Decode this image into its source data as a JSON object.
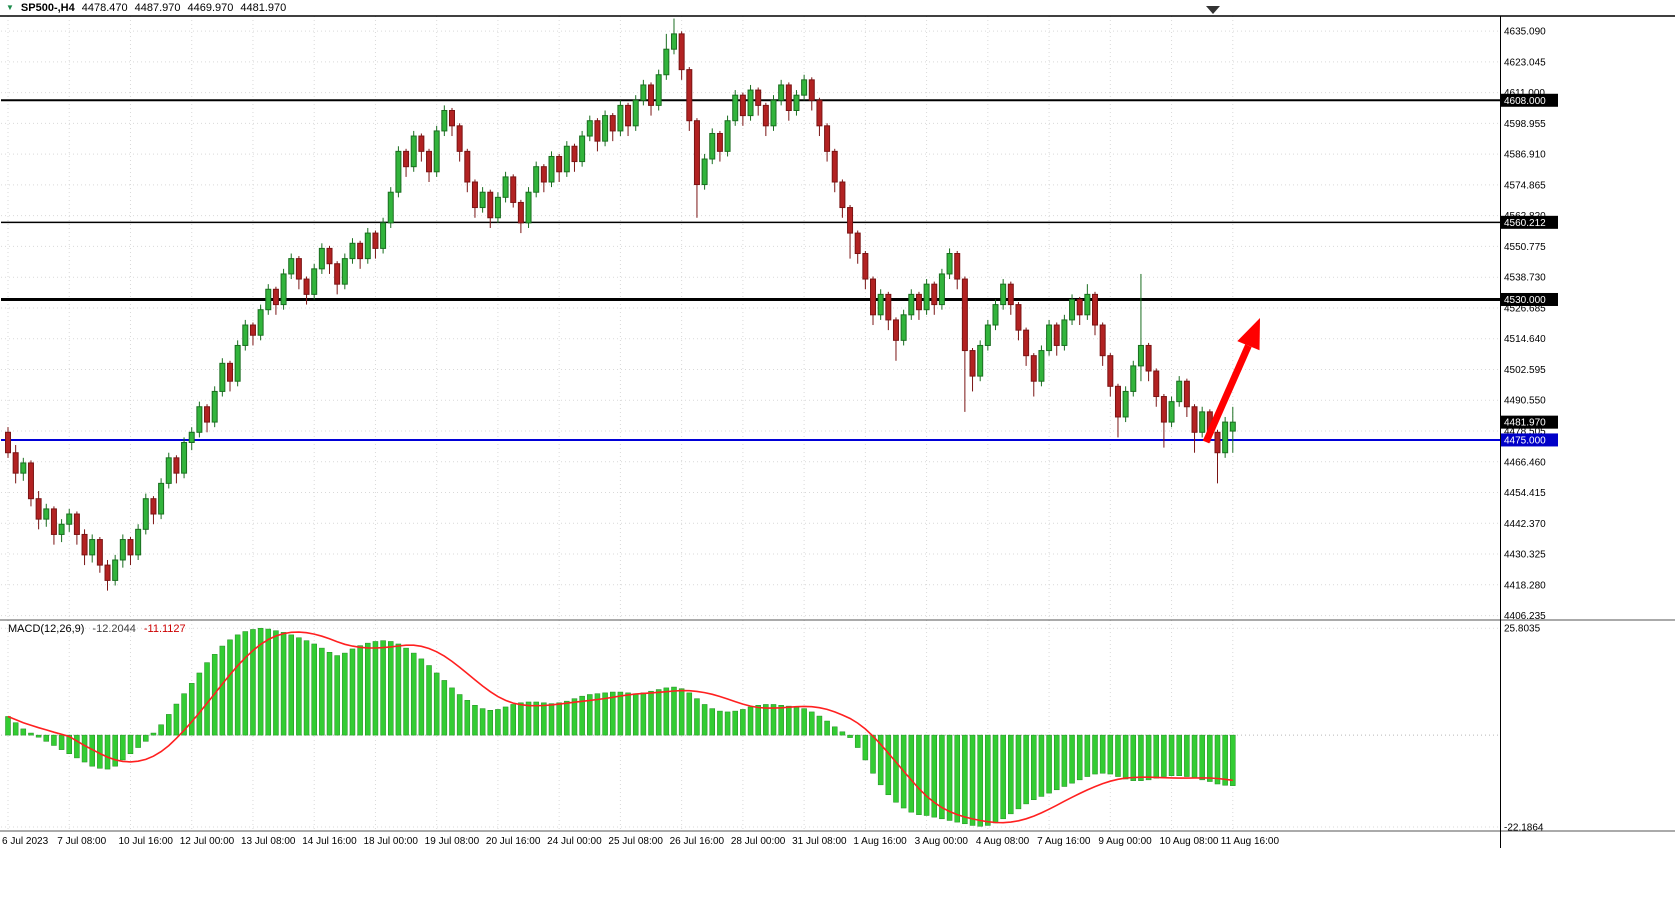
{
  "symbol_bar": {
    "symbol": "SP500-,H4",
    "open": "4478.470",
    "high": "4487.970",
    "low": "4469.970",
    "close": "4481.970"
  },
  "colors": {
    "background": "#ffffff",
    "bull_body": "#32b43c",
    "bull_border": "#1a6e20",
    "bear_body": "#b22222",
    "bear_border": "#7a1414",
    "grid": "#d9d9d9",
    "axis_text": "#000000",
    "macd_histogram": "#33cc33",
    "macd_signal": "#ff2020",
    "level_line": "#000000",
    "support_line": "#0000d8",
    "annotation_arrow": "#ff0000",
    "price_label_bg": "#000000",
    "support_label_bg": "#0000c8"
  },
  "chart_data": [
    {
      "type": "candlestick",
      "symbol": "SP500-,H4",
      "timeframe": "H4",
      "label_every_n_bars": 8,
      "x_labels": [
        "6 Jul 2023",
        "7 Jul 08:00",
        "10 Jul 16:00",
        "12 Jul 00:00",
        "13 Jul 08:00",
        "14 Jul 16:00",
        "18 Jul 00:00",
        "19 Jul 08:00",
        "20 Jul 16:00",
        "24 Jul 00:00",
        "25 Jul 08:00",
        "26 Jul 16:00",
        "28 Jul 00:00",
        "31 Jul 08:00",
        "1 Aug 16:00",
        "3 Aug 00:00",
        "4 Aug 08:00",
        "7 Aug 16:00",
        "9 Aug 00:00",
        "10 Aug 08:00",
        "11 Aug 16:00"
      ],
      "y_ticks": [
        "4635.090",
        "4623.045",
        "4611.000",
        "4598.955",
        "4586.910",
        "4574.865",
        "4562.820",
        "4550.775",
        "4538.730",
        "4526.685",
        "4514.640",
        "4502.595",
        "4490.550",
        "4478.505",
        "4466.460",
        "4454.415",
        "4442.370",
        "4430.325",
        "4418.280",
        "4406.235"
      ],
      "ylim": [
        4404.5,
        4641.0
      ],
      "hlines": [
        {
          "price": 4608.0,
          "label": "4608.000",
          "color": "#000000",
          "width": 2
        },
        {
          "price": 4560.212,
          "label": "4560.212",
          "color": "#000000",
          "width": 1.5
        },
        {
          "price": 4530.0,
          "label": "4530.000",
          "color": "#000000",
          "width": 3
        },
        {
          "price": 4475.0,
          "label": "4475.000",
          "color": "#0000d8",
          "width": 2
        }
      ],
      "current_price": {
        "value": 4481.97,
        "label": "4481.970"
      },
      "annotation": {
        "type": "arrow-up",
        "color": "#ff0000"
      },
      "candles": [
        [
          4478,
          4480,
          4468,
          4470
        ],
        [
          4470,
          4473,
          4458,
          4462
        ],
        [
          4462,
          4468,
          4459,
          4466
        ],
        [
          4466,
          4467,
          4449,
          4452
        ],
        [
          4452,
          4455,
          4440,
          4444
        ],
        [
          4444,
          4450,
          4441,
          4448
        ],
        [
          4448,
          4449,
          4434,
          4438
        ],
        [
          4438,
          4444,
          4435,
          4442
        ],
        [
          4442,
          4448,
          4439,
          4446
        ],
        [
          4446,
          4447,
          4434,
          4438
        ],
        [
          4438,
          4440,
          4426,
          4430
        ],
        [
          4430,
          4438,
          4427,
          4436
        ],
        [
          4436,
          4437,
          4423,
          4426
        ],
        [
          4426,
          4428,
          4416,
          4420
        ],
        [
          4420,
          4430,
          4418,
          4428
        ],
        [
          4428,
          4438,
          4425,
          4436
        ],
        [
          4436,
          4437,
          4426,
          4430
        ],
        [
          4430,
          4442,
          4428,
          4440
        ],
        [
          4440,
          4454,
          4438,
          4452
        ],
        [
          4452,
          4453,
          4442,
          4446
        ],
        [
          4446,
          4460,
          4444,
          4458
        ],
        [
          4458,
          4470,
          4456,
          4468
        ],
        [
          4468,
          4469,
          4458,
          4462
        ],
        [
          4462,
          4476,
          4460,
          4474
        ],
        [
          4474,
          4480,
          4471,
          4478
        ],
        [
          4478,
          4490,
          4476,
          4488
        ],
        [
          4488,
          4489,
          4478,
          4482
        ],
        [
          4482,
          4496,
          4480,
          4494
        ],
        [
          4494,
          4507,
          4492,
          4505
        ],
        [
          4505,
          4506,
          4494,
          4498
        ],
        [
          4498,
          4514,
          4496,
          4512
        ],
        [
          4512,
          4522,
          4510,
          4520
        ],
        [
          4520,
          4521,
          4512,
          4516
        ],
        [
          4516,
          4528,
          4514,
          4526
        ],
        [
          4526,
          4536,
          4524,
          4534
        ],
        [
          4534,
          4535,
          4524,
          4528
        ],
        [
          4528,
          4542,
          4526,
          4540
        ],
        [
          4540,
          4548,
          4538,
          4546
        ],
        [
          4546,
          4547,
          4534,
          4538
        ],
        [
          4538,
          4539,
          4528,
          4532
        ],
        [
          4532,
          4544,
          4530,
          4542
        ],
        [
          4542,
          4552,
          4540,
          4550
        ],
        [
          4550,
          4551,
          4540,
          4544
        ],
        [
          4544,
          4545,
          4532,
          4536
        ],
        [
          4536,
          4548,
          4534,
          4546
        ],
        [
          4546,
          4554,
          4544,
          4552
        ],
        [
          4552,
          4553,
          4542,
          4546
        ],
        [
          4546,
          4558,
          4544,
          4556
        ],
        [
          4556,
          4557,
          4546,
          4550
        ],
        [
          4550,
          4562,
          4548,
          4560
        ],
        [
          4560,
          4574,
          4558,
          4572
        ],
        [
          4572,
          4590,
          4570,
          4588
        ],
        [
          4588,
          4589,
          4578,
          4582
        ],
        [
          4582,
          4596,
          4580,
          4594
        ],
        [
          4594,
          4595,
          4584,
          4588
        ],
        [
          4588,
          4589,
          4576,
          4580
        ],
        [
          4580,
          4598,
          4578,
          4596
        ],
        [
          4596,
          4606,
          4594,
          4604
        ],
        [
          4604,
          4605,
          4594,
          4598
        ],
        [
          4598,
          4599,
          4584,
          4588
        ],
        [
          4588,
          4589,
          4572,
          4576
        ],
        [
          4576,
          4577,
          4562,
          4566
        ],
        [
          4566,
          4574,
          4564,
          4572
        ],
        [
          4572,
          4573,
          4558,
          4562
        ],
        [
          4562,
          4572,
          4560,
          4570
        ],
        [
          4570,
          4580,
          4568,
          4578
        ],
        [
          4578,
          4579,
          4566,
          4568
        ],
        [
          4568,
          4569,
          4556,
          4560
        ],
        [
          4560,
          4574,
          4558,
          4572
        ],
        [
          4572,
          4584,
          4570,
          4582
        ],
        [
          4582,
          4583,
          4572,
          4576
        ],
        [
          4576,
          4588,
          4574,
          4586
        ],
        [
          4586,
          4587,
          4576,
          4580
        ],
        [
          4580,
          4592,
          4578,
          4590
        ],
        [
          4590,
          4591,
          4580,
          4584
        ],
        [
          4584,
          4596,
          4582,
          4594
        ],
        [
          4594,
          4602,
          4592,
          4600
        ],
        [
          4600,
          4601,
          4588,
          4592
        ],
        [
          4592,
          4604,
          4590,
          4602
        ],
        [
          4602,
          4603,
          4592,
          4596
        ],
        [
          4596,
          4608,
          4594,
          4606
        ],
        [
          4606,
          4607,
          4594,
          4598
        ],
        [
          4598,
          4610,
          4596,
          4608
        ],
        [
          4608,
          4616,
          4606,
          4614
        ],
        [
          4614,
          4615,
          4602,
          4606
        ],
        [
          4606,
          4620,
          4604,
          4618
        ],
        [
          4618,
          4634,
          4616,
          4628
        ],
        [
          4628,
          4640,
          4626,
          4634
        ],
        [
          4634,
          4635,
          4616,
          4620
        ],
        [
          4620,
          4621,
          4596,
          4600
        ],
        [
          4600,
          4601,
          4562,
          4575
        ],
        [
          4575,
          4587,
          4573,
          4585
        ],
        [
          4585,
          4597,
          4583,
          4595
        ],
        [
          4595,
          4596,
          4584,
          4588
        ],
        [
          4588,
          4602,
          4586,
          4600
        ],
        [
          4600,
          4612,
          4598,
          4610
        ],
        [
          4610,
          4611,
          4598,
          4602
        ],
        [
          4602,
          4614,
          4600,
          4612
        ],
        [
          4612,
          4613,
          4602,
          4606
        ],
        [
          4606,
          4607,
          4594,
          4598
        ],
        [
          4598,
          4610,
          4596,
          4608
        ],
        [
          4608,
          4616,
          4606,
          4614
        ],
        [
          4614,
          4615,
          4600,
          4604
        ],
        [
          4604,
          4612,
          4602,
          4610
        ],
        [
          4610,
          4618,
          4608,
          4616
        ],
        [
          4616,
          4617,
          4604,
          4608
        ],
        [
          4608,
          4609,
          4594,
          4598
        ],
        [
          4598,
          4599,
          4584,
          4588
        ],
        [
          4588,
          4589,
          4572,
          4576
        ],
        [
          4576,
          4577,
          4562,
          4566
        ],
        [
          4566,
          4567,
          4546,
          4556
        ],
        [
          4556,
          4557,
          4544,
          4548
        ],
        [
          4548,
          4549,
          4534,
          4538
        ],
        [
          4538,
          4539,
          4520,
          4524
        ],
        [
          4524,
          4534,
          4522,
          4532
        ],
        [
          4532,
          4533,
          4518,
          4522
        ],
        [
          4522,
          4523,
          4506,
          4514
        ],
        [
          4514,
          4526,
          4512,
          4524
        ],
        [
          4524,
          4534,
          4522,
          4532
        ],
        [
          4532,
          4533,
          4522,
          4526
        ],
        [
          4526,
          4538,
          4524,
          4536
        ],
        [
          4536,
          4537,
          4524,
          4528
        ],
        [
          4528,
          4542,
          4526,
          4540
        ],
        [
          4540,
          4550,
          4538,
          4548
        ],
        [
          4548,
          4549,
          4534,
          4538
        ],
        [
          4538,
          4539,
          4486,
          4510
        ],
        [
          4510,
          4511,
          4494,
          4500
        ],
        [
          4500,
          4514,
          4498,
          4512
        ],
        [
          4512,
          4522,
          4510,
          4520
        ],
        [
          4520,
          4530,
          4518,
          4528
        ],
        [
          4528,
          4538,
          4526,
          4536
        ],
        [
          4536,
          4537,
          4524,
          4528
        ],
        [
          4528,
          4529,
          4514,
          4518
        ],
        [
          4518,
          4519,
          4504,
          4508
        ],
        [
          4508,
          4509,
          4492,
          4498
        ],
        [
          4498,
          4512,
          4496,
          4510
        ],
        [
          4510,
          4522,
          4508,
          4520
        ],
        [
          4520,
          4521,
          4508,
          4512
        ],
        [
          4512,
          4524,
          4510,
          4522
        ],
        [
          4522,
          4532,
          4520,
          4530
        ],
        [
          4530,
          4531,
          4520,
          4524
        ],
        [
          4524,
          4536,
          4522,
          4532
        ],
        [
          4532,
          4533,
          4516,
          4520
        ],
        [
          4520,
          4521,
          4504,
          4508
        ],
        [
          4508,
          4509,
          4492,
          4496
        ],
        [
          4496,
          4497,
          4476,
          4484
        ],
        [
          4484,
          4496,
          4482,
          4494
        ],
        [
          4494,
          4506,
          4492,
          4504
        ],
        [
          4504,
          4540,
          4498,
          4512
        ],
        [
          4512,
          4513,
          4498,
          4502
        ],
        [
          4502,
          4503,
          4488,
          4492
        ],
        [
          4492,
          4493,
          4472,
          4482
        ],
        [
          4482,
          4492,
          4480,
          4490
        ],
        [
          4490,
          4500,
          4488,
          4498
        ],
        [
          4498,
          4499,
          4484,
          4488
        ],
        [
          4488,
          4489,
          4470,
          4478
        ],
        [
          4478,
          4488,
          4476,
          4486
        ],
        [
          4486,
          4487,
          4474,
          4478
        ],
        [
          4478,
          4479,
          4458,
          4470
        ],
        [
          4470,
          4484,
          4468,
          4482
        ],
        [
          4478.47,
          4487.97,
          4469.97,
          4481.97
        ]
      ]
    },
    {
      "type": "bar",
      "name": "MACD(12,26,9)",
      "current_macd": "-12.2044",
      "current_signal": "-11.1127",
      "signal_period": 9,
      "y_ticks": [
        "25.8035",
        "-22.1864"
      ],
      "ylim": [
        -22.9,
        27.3
      ],
      "values": [
        4.5,
        3.0,
        1.5,
        0.5,
        -0.5,
        -1.5,
        -2.5,
        -3.5,
        -4.5,
        -5.5,
        -6.5,
        -7.5,
        -8.0,
        -8.2,
        -7.5,
        -6.0,
        -4.5,
        -3.0,
        -1.5,
        0.5,
        2.5,
        5.0,
        7.5,
        10.0,
        12.5,
        15.0,
        17.5,
        19.5,
        21.5,
        23.0,
        24.2,
        25.0,
        25.5,
        25.8,
        25.6,
        25.2,
        24.8,
        24.2,
        23.5,
        22.8,
        22.0,
        21.0,
        20.0,
        19.2,
        19.8,
        20.8,
        21.6,
        22.2,
        22.6,
        22.8,
        22.6,
        22.0,
        21.0,
        19.8,
        18.4,
        16.8,
        15.0,
        13.2,
        11.4,
        9.8,
        8.4,
        7.2,
        6.4,
        6.0,
        6.2,
        6.8,
        7.4,
        7.8,
        8.0,
        8.0,
        7.8,
        7.6,
        7.8,
        8.2,
        8.8,
        9.4,
        9.8,
        10.0,
        10.2,
        10.4,
        10.4,
        10.2,
        10.0,
        10.2,
        10.6,
        11.0,
        11.4,
        11.6,
        11.2,
        10.2,
        8.8,
        7.4,
        6.4,
        5.8,
        5.6,
        5.8,
        6.2,
        6.8,
        7.2,
        7.4,
        7.4,
        7.2,
        7.0,
        6.8,
        6.4,
        5.6,
        4.6,
        3.4,
        2.0,
        0.8,
        -0.6,
        -3.0,
        -6.0,
        -9.2,
        -12.0,
        -14.4,
        -16.2,
        -17.6,
        -18.6,
        -19.2,
        -19.4,
        -19.8,
        -20.2,
        -20.6,
        -21.0,
        -21.4,
        -21.8,
        -22.0,
        -21.8,
        -21.2,
        -20.2,
        -19.0,
        -17.8,
        -16.6,
        -15.6,
        -14.8,
        -14.0,
        -13.2,
        -12.4,
        -11.6,
        -10.8,
        -10.0,
        -9.4,
        -9.2,
        -9.4,
        -10.0,
        -10.6,
        -11.0,
        -11.0,
        -10.8,
        -10.4,
        -10.0,
        -9.8,
        -9.8,
        -10.0,
        -10.4,
        -10.8,
        -11.2,
        -11.8,
        -12.1,
        -12.2
      ]
    }
  ]
}
